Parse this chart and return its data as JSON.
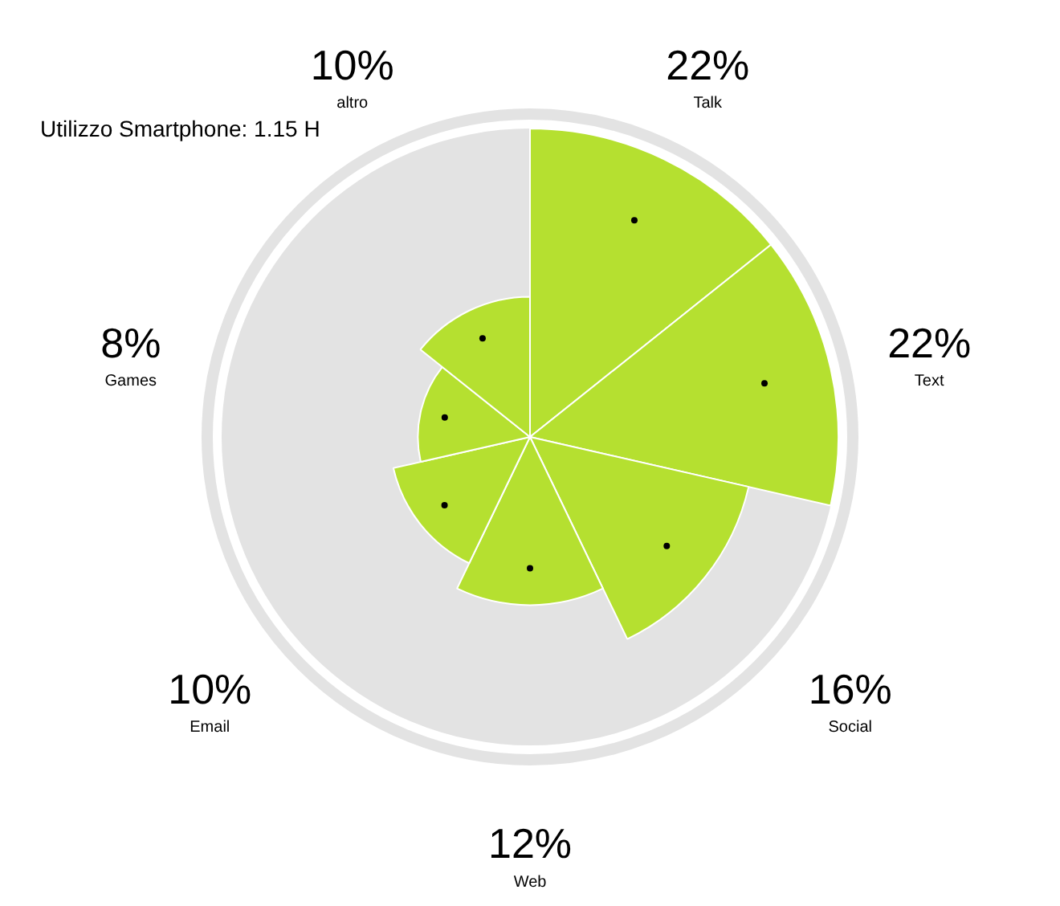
{
  "chart_data": {
    "type": "other",
    "title": "Utilizzo Smartphone: 1.15 H",
    "categories": [
      "Talk",
      "Text",
      "Social",
      "Web",
      "Email",
      "Games",
      "altro"
    ],
    "values": [
      22,
      22,
      16,
      12,
      10,
      8,
      10
    ],
    "value_labels": [
      "22%",
      "22%",
      "16%",
      "12%",
      "10%",
      "8%",
      "10%"
    ],
    "colors": [
      "#b5e030",
      "#b5e030",
      "#b5e030",
      "#b5e030",
      "#b5e030",
      "#b5e030",
      "#b5e030"
    ]
  }
}
